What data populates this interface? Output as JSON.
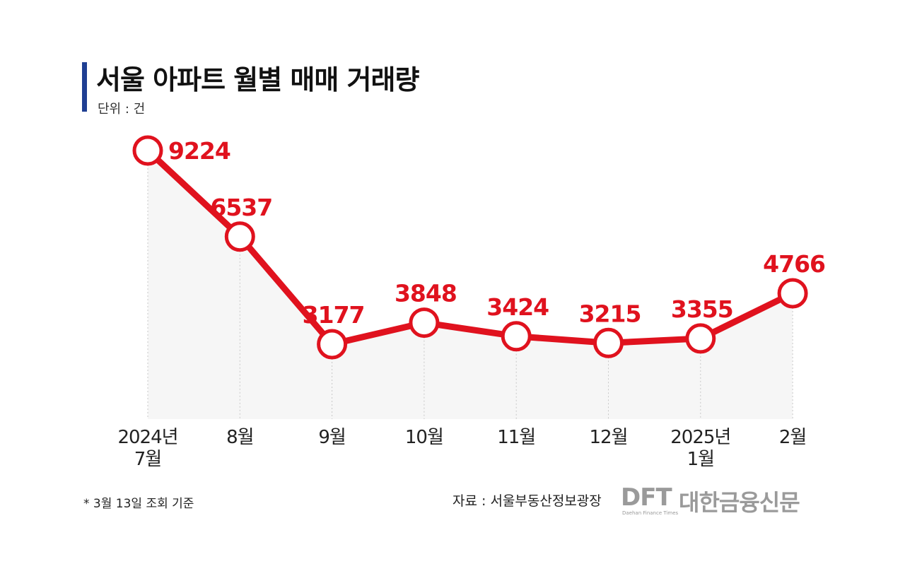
{
  "header": {
    "title": "서울 아파트 월별 매매 거래량",
    "unit": "단위 : 건"
  },
  "chart_data": {
    "type": "line",
    "title": "서울 아파트 월별 매매 거래량",
    "xlabel": "",
    "ylabel": "",
    "unit": "단위 : 건",
    "categories": [
      [
        "2024년",
        "7월"
      ],
      [
        "8월"
      ],
      [
        "9월"
      ],
      [
        "10월"
      ],
      [
        "11월"
      ],
      [
        "12월"
      ],
      [
        "2025년",
        "1월"
      ],
      [
        "2월"
      ]
    ],
    "series": [
      {
        "values": [
          9224,
          6537,
          3177,
          3848,
          3424,
          3215,
          3355,
          4766
        ]
      }
    ],
    "ylim": [
      1000,
      9500
    ],
    "grid": false,
    "legend": "none",
    "colors": {
      "line": "#e0121e",
      "label": "#e0121e",
      "marker_fill": "#ffffff",
      "area": "#f6f6f6",
      "drop_line": "#c8c8c8"
    }
  },
  "footer": {
    "footnote": "* 3월 13일 조회 기준",
    "source": "자료 : 서울부동산정보광장",
    "publisher_mark": "DFT",
    "publisher_name": "대한금융신문",
    "publisher_sub": "Daehan Finance Times"
  }
}
